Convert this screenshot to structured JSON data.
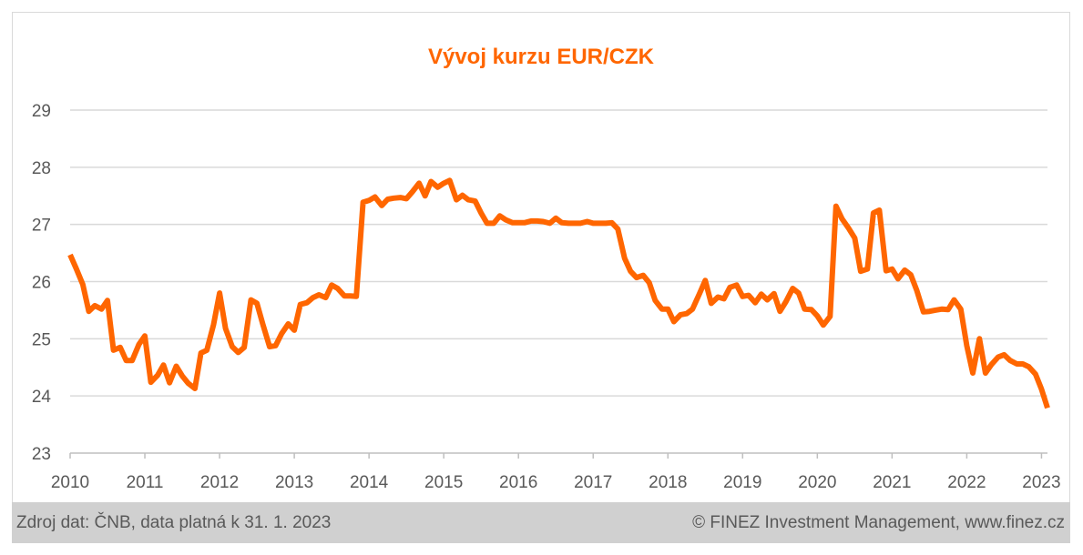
{
  "chart_data": {
    "type": "line",
    "title": "Vývoj kurzu EUR/CZK",
    "xlabel": "",
    "ylabel": "",
    "xlim": [
      2010.0,
      2023.08
    ],
    "ylim": [
      23,
      29
    ],
    "yticks": [
      23,
      24,
      25,
      26,
      27,
      28,
      29
    ],
    "xticks": [
      2010,
      2011,
      2012,
      2013,
      2014,
      2015,
      2016,
      2017,
      2018,
      2019,
      2020,
      2021,
      2022,
      2023
    ],
    "xtick_labels": [
      "2010",
      "2011",
      "2012",
      "2013",
      "2014",
      "2015",
      "2016",
      "2017",
      "2018",
      "2019",
      "2020",
      "2021",
      "2022",
      "2023"
    ],
    "ytick_labels": [
      "23",
      "24",
      "25",
      "26",
      "27",
      "28",
      "29"
    ],
    "grid": "horizontal",
    "line_color": "#ff6600",
    "series": [
      {
        "x": [
          2010.0,
          2010.08,
          2010.17,
          2010.25,
          2010.33,
          2010.42,
          2010.5,
          2010.58,
          2010.67,
          2010.75,
          2010.83,
          2010.92,
          2011.0,
          2011.08,
          2011.17,
          2011.25,
          2011.33,
          2011.42,
          2011.5,
          2011.58,
          2011.67,
          2011.75,
          2011.83,
          2011.92,
          2012.0,
          2012.08,
          2012.17,
          2012.25,
          2012.33,
          2012.42,
          2012.5,
          2012.58,
          2012.67,
          2012.75,
          2012.83,
          2012.92,
          2013.0,
          2013.08,
          2013.17,
          2013.25,
          2013.33,
          2013.42,
          2013.5,
          2013.58,
          2013.67,
          2013.75,
          2013.83,
          2013.92,
          2014.0,
          2014.08,
          2014.17,
          2014.25,
          2014.33,
          2014.42,
          2014.5,
          2014.58,
          2014.67,
          2014.75,
          2014.83,
          2014.92,
          2015.0,
          2015.08,
          2015.17,
          2015.25,
          2015.33,
          2015.42,
          2015.5,
          2015.58,
          2015.67,
          2015.75,
          2015.83,
          2015.92,
          2016.0,
          2016.08,
          2016.17,
          2016.25,
          2016.33,
          2016.42,
          2016.5,
          2016.58,
          2016.67,
          2016.75,
          2016.83,
          2016.92,
          2017.0,
          2017.08,
          2017.17,
          2017.25,
          2017.33,
          2017.42,
          2017.5,
          2017.58,
          2017.67,
          2017.75,
          2017.83,
          2017.92,
          2018.0,
          2018.08,
          2018.17,
          2018.25,
          2018.33,
          2018.42,
          2018.5,
          2018.58,
          2018.67,
          2018.75,
          2018.83,
          2018.92,
          2019.0,
          2019.08,
          2019.17,
          2019.25,
          2019.33,
          2019.42,
          2019.5,
          2019.58,
          2019.67,
          2019.75,
          2019.83,
          2019.92,
          2020.0,
          2020.08,
          2020.17,
          2020.25,
          2020.33,
          2020.42,
          2020.5,
          2020.58,
          2020.67,
          2020.75,
          2020.83,
          2020.92,
          2021.0,
          2021.08,
          2021.17,
          2021.25,
          2021.33,
          2021.42,
          2021.5,
          2021.58,
          2021.67,
          2021.75,
          2021.83,
          2021.92,
          2022.0,
          2022.08,
          2022.17,
          2022.25,
          2022.33,
          2022.42,
          2022.5,
          2022.58,
          2022.67,
          2022.75,
          2022.83,
          2022.92,
          2023.0,
          2023.08
        ],
        "values": [
          26.47,
          26.23,
          25.95,
          25.48,
          25.58,
          25.52,
          25.67,
          24.8,
          24.85,
          24.62,
          24.62,
          24.9,
          25.05,
          24.24,
          24.36,
          24.54,
          24.23,
          24.52,
          24.35,
          24.22,
          24.13,
          24.75,
          24.8,
          25.25,
          25.8,
          25.18,
          24.86,
          24.76,
          24.85,
          25.68,
          25.62,
          25.25,
          24.86,
          24.88,
          25.09,
          25.26,
          25.15,
          25.6,
          25.63,
          25.72,
          25.77,
          25.72,
          25.94,
          25.88,
          25.75,
          25.75,
          25.74,
          27.39,
          27.42,
          27.48,
          27.33,
          27.44,
          27.46,
          27.47,
          27.45,
          27.57,
          27.72,
          27.5,
          27.75,
          27.65,
          27.72,
          27.77,
          27.43,
          27.51,
          27.43,
          27.41,
          27.2,
          27.02,
          27.02,
          27.15,
          27.08,
          27.03,
          27.03,
          27.03,
          27.06,
          27.06,
          27.05,
          27.02,
          27.11,
          27.03,
          27.02,
          27.02,
          27.02,
          27.05,
          27.02,
          27.02,
          27.02,
          27.03,
          26.92,
          26.41,
          26.18,
          26.07,
          26.11,
          25.98,
          25.67,
          25.52,
          25.52,
          25.3,
          25.42,
          25.44,
          25.52,
          25.78,
          26.02,
          25.62,
          25.73,
          25.7,
          25.9,
          25.94,
          25.74,
          25.76,
          25.63,
          25.78,
          25.68,
          25.79,
          25.48,
          25.65,
          25.88,
          25.8,
          25.52,
          25.51,
          25.4,
          25.24,
          25.39,
          27.32,
          27.1,
          26.93,
          26.76,
          26.18,
          26.22,
          27.2,
          27.25,
          26.19,
          26.22,
          26.05,
          26.2,
          26.12,
          25.85,
          25.47,
          25.48,
          25.5,
          25.52,
          25.51,
          25.68,
          25.52,
          24.88,
          24.4,
          25.0,
          24.4,
          24.55,
          24.68,
          24.72,
          24.62,
          24.56,
          24.56,
          24.51,
          24.38,
          24.12,
          23.79
        ]
      }
    ]
  },
  "footer": {
    "source": "Zdroj dat: ČNB, data platná k 31. 1. 2023",
    "copyright": "© FINEZ Investment Management, www.finez.cz"
  }
}
